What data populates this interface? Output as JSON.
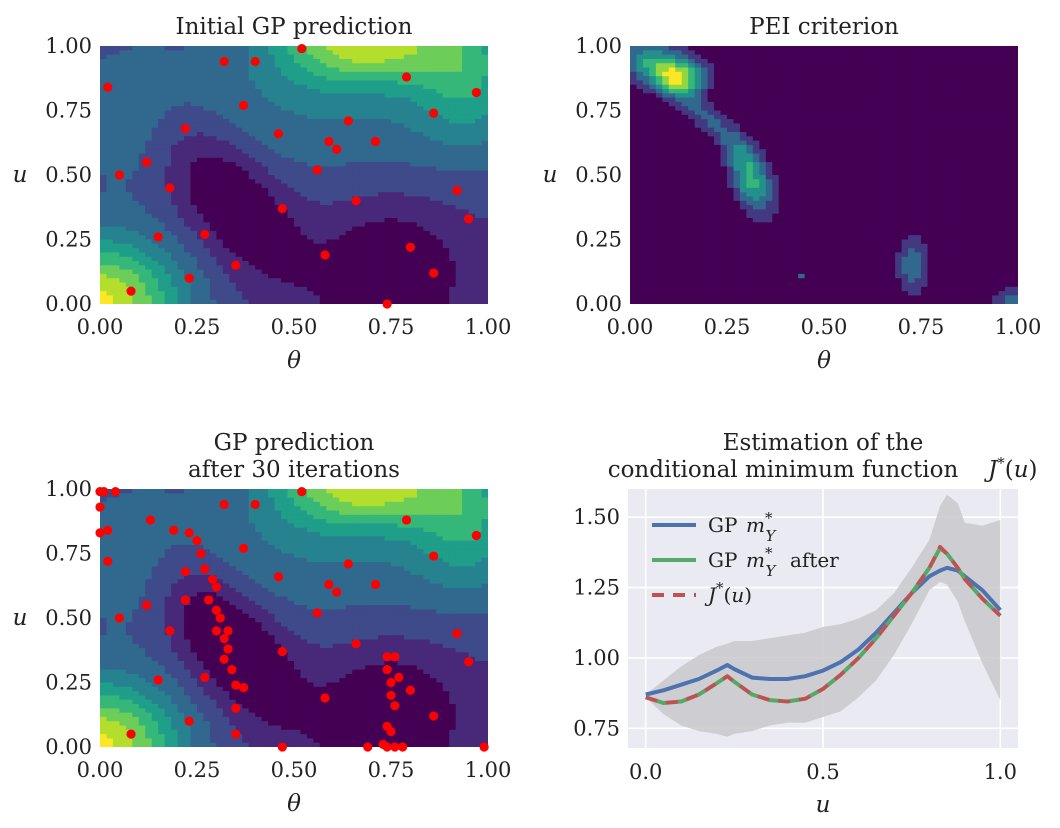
{
  "chart_data": [
    {
      "id": "initial",
      "type": "heatmap",
      "title": "Initial GP prediction",
      "xlabel": "θ",
      "ylabel": "u",
      "xlim": [
        0,
        1
      ],
      "ylim": [
        0,
        1
      ],
      "xticks": [
        "0.00",
        "0.25",
        "0.50",
        "0.75",
        "1.00"
      ],
      "yticks": [
        "0.00",
        "0.25",
        "0.50",
        "0.75",
        "1.00"
      ],
      "points": [
        [
          0.02,
          0.84
        ],
        [
          0.05,
          0.5
        ],
        [
          0.08,
          0.05
        ],
        [
          0.12,
          0.55
        ],
        [
          0.15,
          0.26
        ],
        [
          0.18,
          0.45
        ],
        [
          0.22,
          0.68
        ],
        [
          0.23,
          0.1
        ],
        [
          0.27,
          0.27
        ],
        [
          0.32,
          0.94
        ],
        [
          0.35,
          0.15
        ],
        [
          0.37,
          0.77
        ],
        [
          0.4,
          0.94
        ],
        [
          0.46,
          0.66
        ],
        [
          0.47,
          0.37
        ],
        [
          0.52,
          0.99
        ],
        [
          0.56,
          0.52
        ],
        [
          0.58,
          0.19
        ],
        [
          0.59,
          0.63
        ],
        [
          0.61,
          0.6
        ],
        [
          0.64,
          0.71
        ],
        [
          0.66,
          0.4
        ],
        [
          0.71,
          0.63
        ],
        [
          0.74,
          0.0
        ],
        [
          0.79,
          0.88
        ],
        [
          0.8,
          0.22
        ],
        [
          0.86,
          0.74
        ],
        [
          0.86,
          0.12
        ],
        [
          0.92,
          0.44
        ],
        [
          0.95,
          0.33
        ],
        [
          0.97,
          0.82
        ]
      ]
    },
    {
      "id": "pei",
      "type": "heatmap",
      "title": "PEI criterion",
      "xlabel": "θ",
      "ylabel": "u",
      "xlim": [
        0,
        1
      ],
      "ylim": [
        0,
        1
      ],
      "xticks": [
        "0.00",
        "0.25",
        "0.50",
        "0.75",
        "1.00"
      ],
      "yticks": [
        "0.00",
        "0.25",
        "0.50",
        "0.75",
        "1.00"
      ]
    },
    {
      "id": "after",
      "type": "heatmap",
      "title": "GP prediction after 30 iterations",
      "title_lines": [
        "GP prediction",
        "after 30 iterations"
      ],
      "xlabel": "θ",
      "ylabel": "u",
      "xlim": [
        0,
        1
      ],
      "ylim": [
        0,
        1
      ],
      "xticks": [
        "0.00",
        "0.25",
        "0.50",
        "0.75",
        "1.00"
      ],
      "yticks": [
        "0.00",
        "0.25",
        "0.50",
        "0.75",
        "1.00"
      ],
      "points": [
        [
          0.02,
          0.84
        ],
        [
          0.05,
          0.5
        ],
        [
          0.08,
          0.05
        ],
        [
          0.12,
          0.55
        ],
        [
          0.15,
          0.26
        ],
        [
          0.18,
          0.45
        ],
        [
          0.22,
          0.68
        ],
        [
          0.23,
          0.1
        ],
        [
          0.27,
          0.27
        ],
        [
          0.32,
          0.94
        ],
        [
          0.35,
          0.15
        ],
        [
          0.37,
          0.77
        ],
        [
          0.4,
          0.94
        ],
        [
          0.46,
          0.66
        ],
        [
          0.47,
          0.37
        ],
        [
          0.52,
          0.99
        ],
        [
          0.56,
          0.52
        ],
        [
          0.58,
          0.19
        ],
        [
          0.59,
          0.63
        ],
        [
          0.61,
          0.6
        ],
        [
          0.64,
          0.71
        ],
        [
          0.66,
          0.4
        ],
        [
          0.71,
          0.63
        ],
        [
          0.74,
          0.0
        ],
        [
          0.79,
          0.88
        ],
        [
          0.8,
          0.22
        ],
        [
          0.86,
          0.74
        ],
        [
          0.86,
          0.12
        ],
        [
          0.92,
          0.44
        ],
        [
          0.95,
          0.33
        ],
        [
          0.97,
          0.82
        ],
        [
          0.0,
          0.99
        ],
        [
          0.0,
          0.93
        ],
        [
          0.0,
          0.83
        ],
        [
          0.01,
          0.99
        ],
        [
          0.04,
          0.99
        ],
        [
          0.02,
          0.72
        ],
        [
          0.13,
          0.88
        ],
        [
          0.19,
          0.84
        ],
        [
          0.23,
          0.83
        ],
        [
          0.25,
          0.8
        ],
        [
          0.26,
          0.75
        ],
        [
          0.27,
          0.69
        ],
        [
          0.3,
          0.62
        ],
        [
          0.29,
          0.65
        ],
        [
          0.22,
          0.57
        ],
        [
          0.28,
          0.57
        ],
        [
          0.3,
          0.53
        ],
        [
          0.31,
          0.5
        ],
        [
          0.3,
          0.45
        ],
        [
          0.33,
          0.45
        ],
        [
          0.32,
          0.42
        ],
        [
          0.33,
          0.38
        ],
        [
          0.32,
          0.34
        ],
        [
          0.34,
          0.3
        ],
        [
          0.35,
          0.24
        ],
        [
          0.37,
          0.23
        ],
        [
          0.35,
          0.05
        ],
        [
          0.47,
          0.0
        ],
        [
          0.74,
          0.35
        ],
        [
          0.76,
          0.35
        ],
        [
          0.74,
          0.3
        ],
        [
          0.77,
          0.27
        ],
        [
          0.75,
          0.25
        ],
        [
          0.75,
          0.2
        ],
        [
          0.76,
          0.16
        ],
        [
          0.74,
          0.08
        ],
        [
          0.75,
          0.06
        ],
        [
          0.73,
          0.01
        ],
        [
          0.69,
          0.0
        ],
        [
          0.76,
          0.0
        ],
        [
          0.78,
          0.0
        ],
        [
          0.99,
          0.0
        ]
      ]
    },
    {
      "id": "estimation",
      "type": "line",
      "title": "Estimation of the conditional minimum function J*(u)",
      "title_lines": [
        "Estimation of the",
        "conditional minimum function "
      ],
      "title_math": "J*(u)",
      "xlabel": "u",
      "xlim": [
        -0.05,
        1.05
      ],
      "ylim": [
        0.68,
        1.6
      ],
      "xticks": [
        "0.0",
        "0.5",
        "1.0"
      ],
      "yticks": [
        "0.75",
        "1.00",
        "1.25",
        "1.50"
      ],
      "x": [
        0.0,
        0.05,
        0.1,
        0.15,
        0.2,
        0.23,
        0.25,
        0.3,
        0.35,
        0.4,
        0.45,
        0.5,
        0.55,
        0.6,
        0.65,
        0.7,
        0.75,
        0.8,
        0.83,
        0.85,
        0.88,
        0.9,
        0.95,
        1.0
      ],
      "band_lower": [
        0.86,
        0.8,
        0.76,
        0.74,
        0.73,
        0.72,
        0.73,
        0.74,
        0.76,
        0.77,
        0.77,
        0.79,
        0.81,
        0.86,
        0.92,
        1.01,
        1.12,
        1.24,
        1.27,
        1.26,
        1.2,
        1.13,
        0.98,
        0.85
      ],
      "band_upper": [
        0.87,
        0.92,
        0.97,
        1.01,
        1.04,
        1.05,
        1.06,
        1.06,
        1.07,
        1.08,
        1.09,
        1.11,
        1.12,
        1.14,
        1.17,
        1.23,
        1.32,
        1.42,
        1.54,
        1.58,
        1.55,
        1.48,
        1.47,
        1.49
      ],
      "series": [
        {
          "name": "GP ",
          "math": "m*_Y",
          "color": "#4c72b0",
          "dash": "solid",
          "y": [
            0.87,
            0.885,
            0.905,
            0.925,
            0.955,
            0.975,
            0.96,
            0.93,
            0.925,
            0.925,
            0.935,
            0.955,
            0.985,
            1.03,
            1.09,
            1.16,
            1.23,
            1.29,
            1.31,
            1.32,
            1.31,
            1.29,
            1.24,
            1.17
          ]
        },
        {
          "name": "GP ",
          "math": "m*_Y",
          "suffix": " after",
          "color": "#55a868",
          "dash": "solid",
          "y": [
            0.86,
            0.84,
            0.845,
            0.87,
            0.91,
            0.935,
            0.915,
            0.87,
            0.85,
            0.845,
            0.855,
            0.89,
            0.94,
            1.0,
            1.07,
            1.15,
            1.23,
            1.32,
            1.39,
            1.37,
            1.32,
            1.28,
            1.21,
            1.15
          ]
        },
        {
          "name": "",
          "math": "J*(u)",
          "color": "#c44e52",
          "dash": "dashed",
          "y": [
            0.86,
            0.84,
            0.845,
            0.87,
            0.91,
            0.935,
            0.915,
            0.87,
            0.85,
            0.845,
            0.855,
            0.89,
            0.94,
            1.0,
            1.07,
            1.15,
            1.23,
            1.32,
            1.395,
            1.37,
            1.32,
            1.28,
            1.21,
            1.15
          ]
        }
      ],
      "legend_position": "upper-left",
      "grid": true,
      "background": "#eaeaf2",
      "band_color": "#c9c9cc"
    }
  ]
}
